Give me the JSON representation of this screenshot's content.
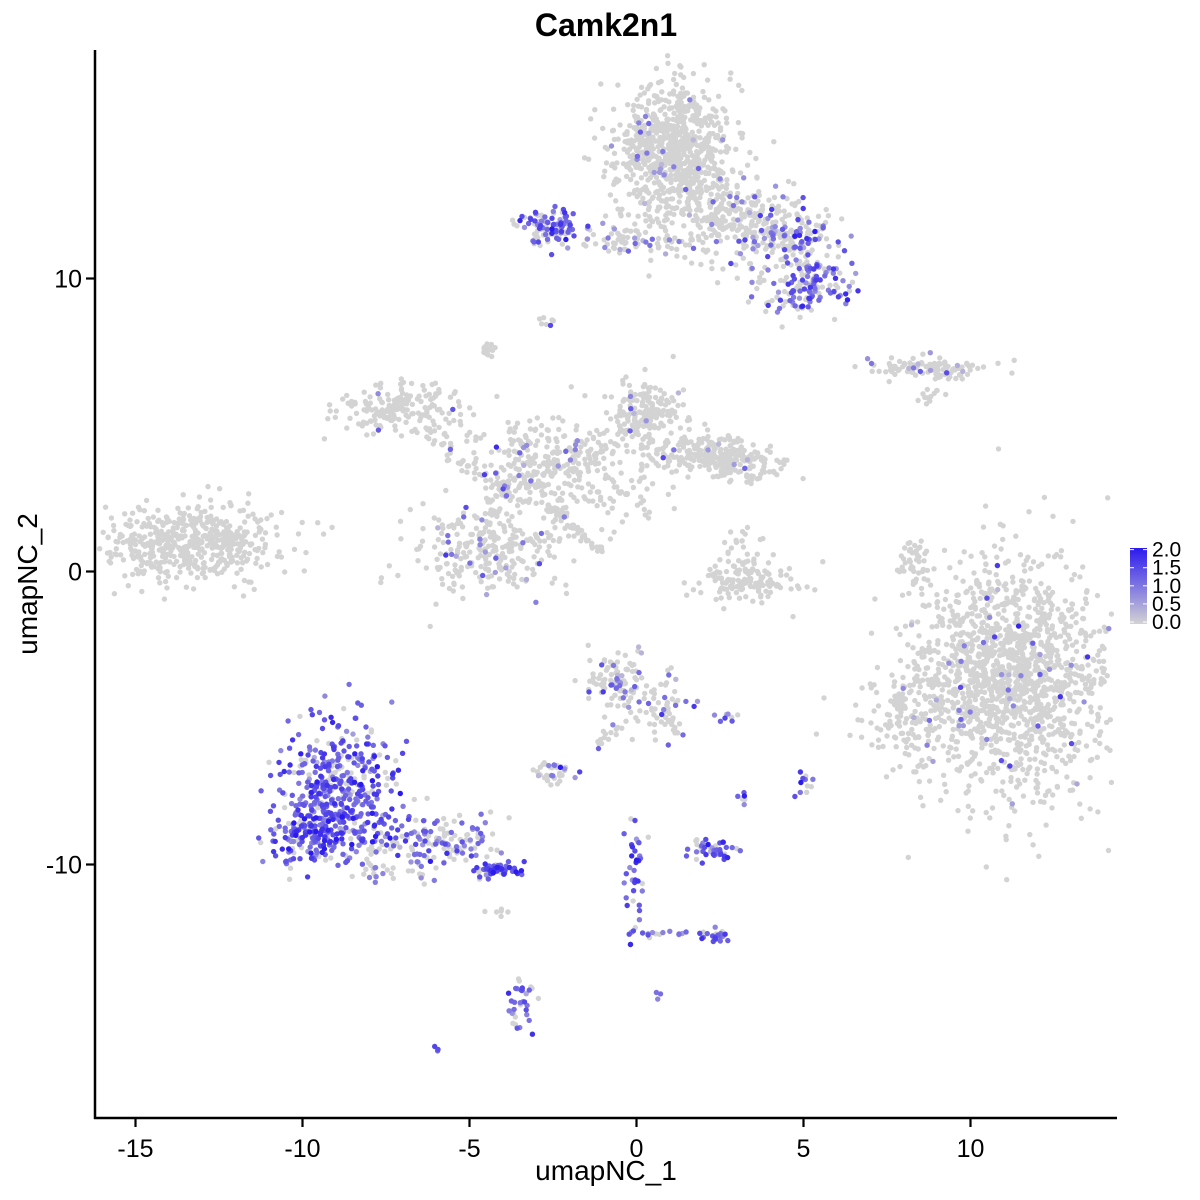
{
  "chart_data": {
    "type": "scatter",
    "title": "Camk2n1",
    "xlabel": "umapNC_1",
    "ylabel": "umapNC_2",
    "xlim": [
      -16.5,
      14.5
    ],
    "ylim": [
      -18.5,
      17.5
    ],
    "xticks": [
      -15,
      -10,
      -5,
      0,
      5,
      10
    ],
    "yticks": [
      -10,
      0,
      10
    ],
    "xtick_labels": [
      "-15",
      "-10",
      "-5",
      "0",
      "5",
      "10"
    ],
    "ytick_labels": [
      "-10",
      "0",
      "10"
    ],
    "grid": false,
    "legend": {
      "placement": "right",
      "ticks": [
        0.0,
        0.5,
        1.0,
        1.5,
        2.0
      ],
      "labels": [
        "0.0",
        "0.5",
        "1.0",
        "1.5",
        "2.0"
      ],
      "low_color": "#d3d3d3",
      "high_color": "#2b1aee"
    },
    "colors": {
      "low": "#d3d3d3",
      "high": "#2b1aee"
    },
    "clusters": [
      {
        "id": "c1",
        "cx": -13.3,
        "cy": 1.0,
        "sx": 1.3,
        "sy": 0.65,
        "n": 520,
        "expr_frac": 0.0,
        "expr_mean": 0.2
      },
      {
        "id": "c2",
        "cx": 11.2,
        "cy": -3.6,
        "sx": 1.5,
        "sy": 2.0,
        "n": 1500,
        "expr_frac": 0.03,
        "expr_mean": 0.9
      },
      {
        "id": "c3",
        "cx": 8.1,
        "cy": -4.8,
        "sx": 0.8,
        "sy": 0.9,
        "n": 120,
        "expr_frac": 0.02,
        "expr_mean": 0.8
      },
      {
        "id": "c4",
        "cx": 1.1,
        "cy": 14.4,
        "sx": 0.85,
        "sy": 1.1,
        "n": 800,
        "expr_frac": 0.03,
        "expr_mean": 0.8
      },
      {
        "id": "c5",
        "cx": 3.4,
        "cy": 11.8,
        "sx": 1.1,
        "sy": 0.7,
        "n": 250,
        "expr_frac": 0.12,
        "expr_mean": 1.0
      },
      {
        "id": "c6",
        "cx": 5.3,
        "cy": 9.8,
        "sx": 0.5,
        "sy": 0.5,
        "n": 130,
        "expr_frac": 0.55,
        "expr_mean": 1.2
      },
      {
        "id": "c7",
        "cx": 4.6,
        "cy": 11.4,
        "sx": 0.6,
        "sy": 0.45,
        "n": 110,
        "expr_frac": 0.4,
        "expr_mean": 1.1
      },
      {
        "id": "c8",
        "cx": -2.5,
        "cy": 11.7,
        "sx": 0.45,
        "sy": 0.3,
        "n": 110,
        "expr_frac": 0.55,
        "expr_mean": 1.2
      },
      {
        "id": "c9",
        "cx": -0.3,
        "cy": 11.2,
        "sx": 1.0,
        "sy": 0.2,
        "n": 50,
        "expr_frac": 0.3,
        "expr_mean": 1.0
      },
      {
        "id": "c10",
        "cx": 8.7,
        "cy": 6.9,
        "sx": 0.9,
        "sy": 0.18,
        "n": 110,
        "expr_frac": 0.12,
        "expr_mean": 0.9
      },
      {
        "id": "c11",
        "cx": -7.0,
        "cy": 5.6,
        "sx": 0.9,
        "sy": 0.45,
        "n": 170,
        "expr_frac": 0.03,
        "expr_mean": 0.9
      },
      {
        "id": "c12",
        "cx": -4.5,
        "cy": 0.8,
        "sx": 1.2,
        "sy": 0.75,
        "n": 260,
        "expr_frac": 0.08,
        "expr_mean": 0.9
      },
      {
        "id": "c13",
        "cx": -3.2,
        "cy": 3.8,
        "sx": 1.1,
        "sy": 0.8,
        "n": 200,
        "expr_frac": 0.05,
        "expr_mean": 0.9
      },
      {
        "id": "c14",
        "cx": 0.2,
        "cy": 5.4,
        "sx": 0.6,
        "sy": 0.55,
        "n": 150,
        "expr_frac": 0.02,
        "expr_mean": 0.8
      },
      {
        "id": "c15",
        "cx": 1.9,
        "cy": 4.0,
        "sx": 0.9,
        "sy": 0.35,
        "n": 180,
        "expr_frac": 0.03,
        "expr_mean": 0.9
      },
      {
        "id": "c16",
        "cx": 3.2,
        "cy": 3.7,
        "sx": 0.6,
        "sy": 0.35,
        "n": 100,
        "expr_frac": 0.02,
        "expr_mean": 0.8
      },
      {
        "id": "c17",
        "cx": -1.5,
        "cy": 2.9,
        "sx": 1.2,
        "sy": 0.7,
        "n": 120,
        "expr_frac": 0.02,
        "expr_mean": 0.8
      },
      {
        "id": "c18",
        "cx": 3.3,
        "cy": -0.4,
        "sx": 0.7,
        "sy": 0.35,
        "n": 130,
        "expr_frac": 0.0,
        "expr_mean": 0.2
      },
      {
        "id": "c19",
        "cx": 3.2,
        "cy": 0.6,
        "sx": 0.3,
        "sy": 0.5,
        "n": 35,
        "expr_frac": 0.0,
        "expr_mean": 0.2
      },
      {
        "id": "c20",
        "cx": 8.3,
        "cy": 0.3,
        "sx": 0.25,
        "sy": 0.45,
        "n": 40,
        "expr_frac": 0.0,
        "expr_mean": 0.2
      },
      {
        "id": "c21",
        "cx": -4.5,
        "cy": 7.5,
        "sx": 0.12,
        "sy": 0.18,
        "n": 18,
        "expr_frac": 0.0,
        "expr_mean": 0.2
      },
      {
        "id": "c22",
        "cx": -2.7,
        "cy": 8.6,
        "sx": 0.1,
        "sy": 0.08,
        "n": 8,
        "expr_frac": 0.3,
        "expr_mean": 1.0
      },
      {
        "id": "c23",
        "cx": 8.8,
        "cy": 6.0,
        "sx": 0.25,
        "sy": 0.2,
        "n": 12,
        "expr_frac": 0.0,
        "expr_mean": 0.2
      },
      {
        "id": "c24",
        "cx": -8.9,
        "cy": -7.6,
        "sx": 0.9,
        "sy": 1.2,
        "n": 460,
        "expr_frac": 0.8,
        "expr_mean": 1.3
      },
      {
        "id": "c25",
        "cx": -9.9,
        "cy": -8.9,
        "sx": 0.55,
        "sy": 0.5,
        "n": 130,
        "expr_frac": 0.8,
        "expr_mean": 1.3
      },
      {
        "id": "c26",
        "cx": -6.0,
        "cy": -9.3,
        "sx": 1.1,
        "sy": 0.45,
        "n": 140,
        "expr_frac": 0.5,
        "expr_mean": 1.1
      },
      {
        "id": "c27",
        "cx": -4.2,
        "cy": -10.2,
        "sx": 0.35,
        "sy": 0.15,
        "n": 55,
        "expr_frac": 0.85,
        "expr_mean": 1.5
      },
      {
        "id": "c28",
        "cx": -0.5,
        "cy": -3.8,
        "sx": 0.55,
        "sy": 0.55,
        "n": 110,
        "expr_frac": 0.25,
        "expr_mean": 1.0
      },
      {
        "id": "c29",
        "cx": 0.9,
        "cy": -4.8,
        "sx": 0.4,
        "sy": 0.6,
        "n": 40,
        "expr_frac": 0.2,
        "expr_mean": 1.0
      },
      {
        "id": "c30",
        "cx": -2.5,
        "cy": -6.9,
        "sx": 0.35,
        "sy": 0.18,
        "n": 35,
        "expr_frac": 0.3,
        "expr_mean": 1.0
      },
      {
        "id": "c31",
        "cx": 2.3,
        "cy": -9.5,
        "sx": 0.35,
        "sy": 0.2,
        "n": 45,
        "expr_frac": 0.75,
        "expr_mean": 1.3
      },
      {
        "id": "c32",
        "cx": 2.4,
        "cy": -12.4,
        "sx": 0.2,
        "sy": 0.15,
        "n": 20,
        "expr_frac": 0.8,
        "expr_mean": 1.3
      },
      {
        "id": "c33",
        "cx": -3.5,
        "cy": -14.6,
        "sx": 0.2,
        "sy": 0.55,
        "n": 35,
        "expr_frac": 0.55,
        "expr_mean": 1.1
      },
      {
        "id": "c34",
        "cx": 0.0,
        "cy": -10.8,
        "sx": 0.15,
        "sy": 1.1,
        "n": 40,
        "expr_frac": 0.75,
        "expr_mean": 1.3
      },
      {
        "id": "c35",
        "cx": 5.0,
        "cy": -7.3,
        "sx": 0.12,
        "sy": 0.25,
        "n": 12,
        "expr_frac": 0.6,
        "expr_mean": 1.1
      },
      {
        "id": "c36",
        "cx": 3.2,
        "cy": -7.7,
        "sx": 0.08,
        "sy": 0.2,
        "n": 6,
        "expr_frac": 0.7,
        "expr_mean": 1.2
      },
      {
        "id": "c37",
        "cx": 2.8,
        "cy": -5.0,
        "sx": 0.25,
        "sy": 0.08,
        "n": 8,
        "expr_frac": 0.5,
        "expr_mean": 1.1
      },
      {
        "id": "c38",
        "cx": -6.0,
        "cy": -16.3,
        "sx": 0.08,
        "sy": 0.08,
        "n": 3,
        "expr_frac": 1.0,
        "expr_mean": 1.2
      },
      {
        "id": "c39",
        "cx": 0.7,
        "cy": -14.5,
        "sx": 0.06,
        "sy": 0.08,
        "n": 3,
        "expr_frac": 1.0,
        "expr_mean": 1.4
      },
      {
        "id": "c40",
        "cx": -4.5,
        "cy": -11.6,
        "sx": 0.3,
        "sy": 0.1,
        "n": 6,
        "expr_frac": 0.0,
        "expr_mean": 0.2
      }
    ],
    "strands": [
      {
        "id": "s1",
        "from": [
          -4.5,
          2.6
        ],
        "to": [
          -1.2,
          3.8
        ],
        "n": 70,
        "jitter": 0.22,
        "expr_frac": 0.05
      },
      {
        "id": "s2",
        "from": [
          -1.2,
          3.8
        ],
        "to": [
          1.5,
          6.0
        ],
        "n": 50,
        "jitter": 0.22,
        "expr_frac": 0.02
      },
      {
        "id": "s3",
        "from": [
          -2.7,
          2.3
        ],
        "to": [
          -1.1,
          0.7
        ],
        "n": 45,
        "jitter": 0.08,
        "expr_frac": 0.0
      },
      {
        "id": "s4",
        "from": [
          -6.2,
          4.9
        ],
        "to": [
          -4.8,
          3.2
        ],
        "n": 28,
        "jitter": 0.18,
        "expr_frac": 0.1
      },
      {
        "id": "s5",
        "from": [
          -4.3,
          2.6
        ],
        "to": [
          -4.5,
          0.9
        ],
        "n": 22,
        "jitter": 0.14,
        "expr_frac": 0.15
      },
      {
        "id": "s6",
        "from": [
          2.8,
          11.8
        ],
        "to": [
          2.3,
          13.5
        ],
        "n": 40,
        "jitter": 0.25,
        "expr_frac": 0.0
      },
      {
        "id": "s7",
        "from": [
          -1.0,
          11.2
        ],
        "to": [
          1.8,
          12.5
        ],
        "n": 40,
        "jitter": 0.25,
        "expr_frac": 0.0
      },
      {
        "id": "s8",
        "from": [
          3.0,
          10.2
        ],
        "to": [
          5.0,
          8.6
        ],
        "n": 25,
        "jitter": 0.25,
        "expr_frac": 0.3
      },
      {
        "id": "s9",
        "from": [
          -0.5,
          -5.2
        ],
        "to": [
          -1.4,
          -6.2
        ],
        "n": 16,
        "jitter": 0.1,
        "expr_frac": 0.2
      },
      {
        "id": "s10",
        "from": [
          0.9,
          -4.6
        ],
        "to": [
          1.2,
          -5.6
        ],
        "n": 15,
        "jitter": 0.08,
        "expr_frac": 0.1
      },
      {
        "id": "s11",
        "from": [
          0.0,
          -12.4
        ],
        "to": [
          2.3,
          -12.3
        ],
        "n": 14,
        "jitter": 0.05,
        "expr_frac": 0.6
      },
      {
        "id": "s12",
        "from": [
          7.8,
          -4.5
        ],
        "to": [
          8.9,
          -3.2
        ],
        "n": 20,
        "jitter": 0.18,
        "expr_frac": 0.0
      },
      {
        "id": "s13",
        "from": [
          -8.2,
          -10.2
        ],
        "to": [
          -6.0,
          -10.4
        ],
        "n": 18,
        "jitter": 0.12,
        "expr_frac": 0.3
      },
      {
        "id": "s14",
        "from": [
          -10.6,
          5.8
        ],
        "to": [
          -7.5,
          5.4
        ],
        "n": 0,
        "jitter": 0.1,
        "expr_frac": 0.0
      }
    ]
  }
}
